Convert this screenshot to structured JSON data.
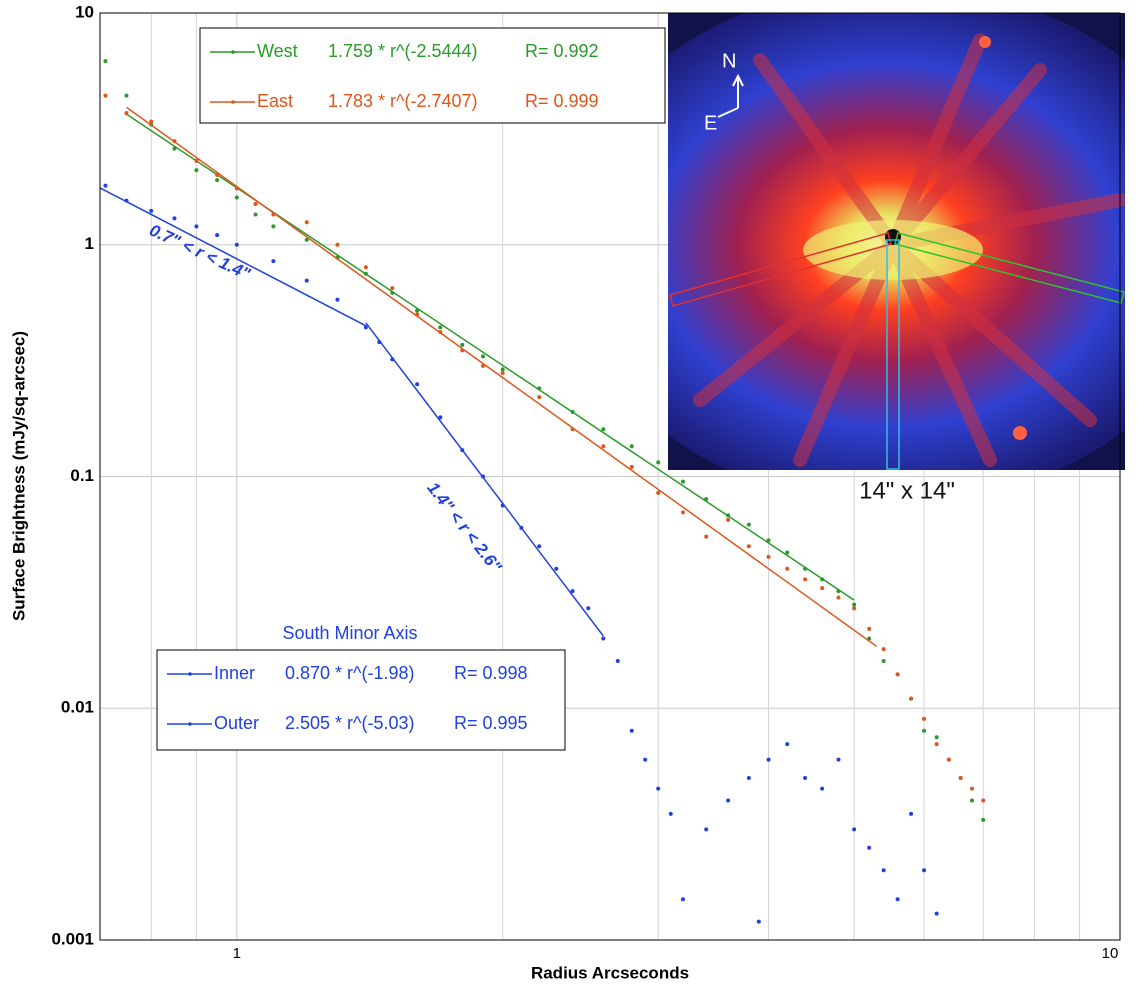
{
  "chart_data": {
    "type": "scatter",
    "xlabel": "Radius Arcseconds",
    "ylabel": "Surface Brightness (mJy/sq-arcsec)",
    "xscale": "log",
    "yscale": "log",
    "xlim": [
      0.7,
      10
    ],
    "ylim": [
      0.001,
      10
    ],
    "xticks": [
      1,
      10
    ],
    "xgrid": [
      0.8,
      0.9,
      2,
      3,
      4,
      5,
      6,
      7,
      8,
      9
    ],
    "yticks": [
      0.001,
      0.01,
      0.1,
      1,
      10
    ],
    "grid": true,
    "legend_groups": [
      {
        "title": null,
        "series": [
          0,
          1
        ]
      },
      {
        "title": "South Minor Axis",
        "series": [
          2,
          3
        ]
      }
    ],
    "series": [
      {
        "name": "West",
        "color": "#2a9a2a",
        "fit": "1.759 * r^(-2.5444)",
        "r": "R= 0.992",
        "x": [
          0.71,
          0.75,
          0.8,
          0.85,
          0.9,
          0.95,
          1.0,
          1.05,
          1.1,
          1.2,
          1.3,
          1.4,
          1.5,
          1.6,
          1.7,
          1.8,
          1.9,
          2.0,
          2.2,
          2.4,
          2.6,
          2.8,
          3.0,
          3.2,
          3.4,
          3.6,
          3.8,
          4.0,
          4.2,
          4.4,
          4.6,
          4.8,
          5.0,
          5.2,
          5.4,
          5.6,
          5.8,
          6.0,
          6.2,
          6.4,
          6.6,
          6.8,
          7.0
        ],
        "values": [
          6.2,
          4.4,
          3.3,
          2.6,
          2.1,
          1.9,
          1.6,
          1.35,
          1.2,
          1.05,
          0.88,
          0.75,
          0.62,
          0.52,
          0.44,
          0.37,
          0.33,
          0.29,
          0.24,
          0.19,
          0.16,
          0.135,
          0.115,
          0.095,
          0.08,
          0.068,
          0.062,
          0.053,
          0.047,
          0.04,
          0.036,
          0.032,
          0.028,
          0.02,
          0.016,
          0.014,
          0.011,
          0.008,
          0.0075,
          0.006,
          0.005,
          0.004,
          0.0033
        ],
        "fit_x": [
          0.75,
          5.0
        ],
        "fit_values": [
          3.66,
          0.0293
        ]
      },
      {
        "name": "East",
        "color": "#e0561a",
        "fit": "1.783 * r^(-2.7407)",
        "r": "R= 0.999",
        "x": [
          0.71,
          0.75,
          0.8,
          0.85,
          0.9,
          0.95,
          1.0,
          1.05,
          1.1,
          1.2,
          1.3,
          1.4,
          1.5,
          1.6,
          1.7,
          1.8,
          1.9,
          2.0,
          2.2,
          2.4,
          2.6,
          2.8,
          3.0,
          3.2,
          3.4,
          3.6,
          3.8,
          4.0,
          4.2,
          4.4,
          4.6,
          4.8,
          5.0,
          5.2,
          5.4,
          5.6,
          5.8,
          6.0,
          6.2,
          6.4,
          6.6,
          6.8,
          7.0
        ],
        "values": [
          4.4,
          3.7,
          3.4,
          2.8,
          2.3,
          2.0,
          1.75,
          1.5,
          1.35,
          1.25,
          1.0,
          0.8,
          0.65,
          0.5,
          0.42,
          0.35,
          0.3,
          0.28,
          0.22,
          0.16,
          0.135,
          0.11,
          0.085,
          0.07,
          0.055,
          0.065,
          0.05,
          0.045,
          0.04,
          0.036,
          0.033,
          0.03,
          0.027,
          0.022,
          0.018,
          0.014,
          0.011,
          0.009,
          0.007,
          0.006,
          0.005,
          0.0045,
          0.004
        ],
        "fit_x": [
          0.75,
          5.3
        ],
        "fit_values": [
          3.92,
          0.0185
        ]
      },
      {
        "name": "Inner",
        "color": "#2040e0",
        "fit": "0.870 * r^(-1.98)",
        "r": "R= 0.998",
        "x": [
          0.71,
          0.75,
          0.8,
          0.85,
          0.9,
          0.95,
          1.0,
          1.1,
          1.2,
          1.3,
          1.4
        ],
        "values": [
          1.8,
          1.55,
          1.4,
          1.3,
          1.2,
          1.1,
          1.0,
          0.85,
          0.7,
          0.58,
          0.44
        ],
        "fit_x": [
          0.7,
          1.4
        ],
        "fit_values": [
          1.76,
          0.447
        ],
        "annotation": "0.7\" < r < 1.4\""
      },
      {
        "name": "Outer",
        "color": "#2040e0",
        "fit": "2.505 * r^(-5.03)",
        "r": "R= 0.995",
        "x": [
          1.45,
          1.5,
          1.6,
          1.7,
          1.8,
          1.9,
          2.0,
          2.1,
          2.2,
          2.3,
          2.4,
          2.5,
          2.6,
          2.7,
          2.8,
          2.9,
          3.0,
          3.1,
          3.2,
          3.4,
          3.6,
          3.8,
          3.9,
          4.0,
          4.2,
          4.4,
          4.6,
          4.8,
          5.0,
          5.2,
          5.4,
          5.6,
          5.8,
          6.0,
          6.2
        ],
        "values": [
          0.38,
          0.32,
          0.25,
          0.18,
          0.13,
          0.1,
          0.075,
          0.06,
          0.05,
          0.04,
          0.032,
          0.027,
          0.02,
          0.016,
          0.008,
          0.006,
          0.0045,
          0.0035,
          0.0015,
          0.003,
          0.004,
          0.005,
          0.0012,
          0.006,
          0.007,
          0.005,
          0.0045,
          0.006,
          0.003,
          0.0025,
          0.002,
          0.0015,
          0.0035,
          0.002,
          0.0013
        ],
        "fit_x": [
          1.4,
          2.6
        ],
        "fit_values": [
          0.46,
          0.0205
        ],
        "annotation": "1.4\" < r < 2.6\""
      }
    ],
    "inset": {
      "caption": "14\" x 14\"",
      "north": "N",
      "east": "E"
    }
  }
}
